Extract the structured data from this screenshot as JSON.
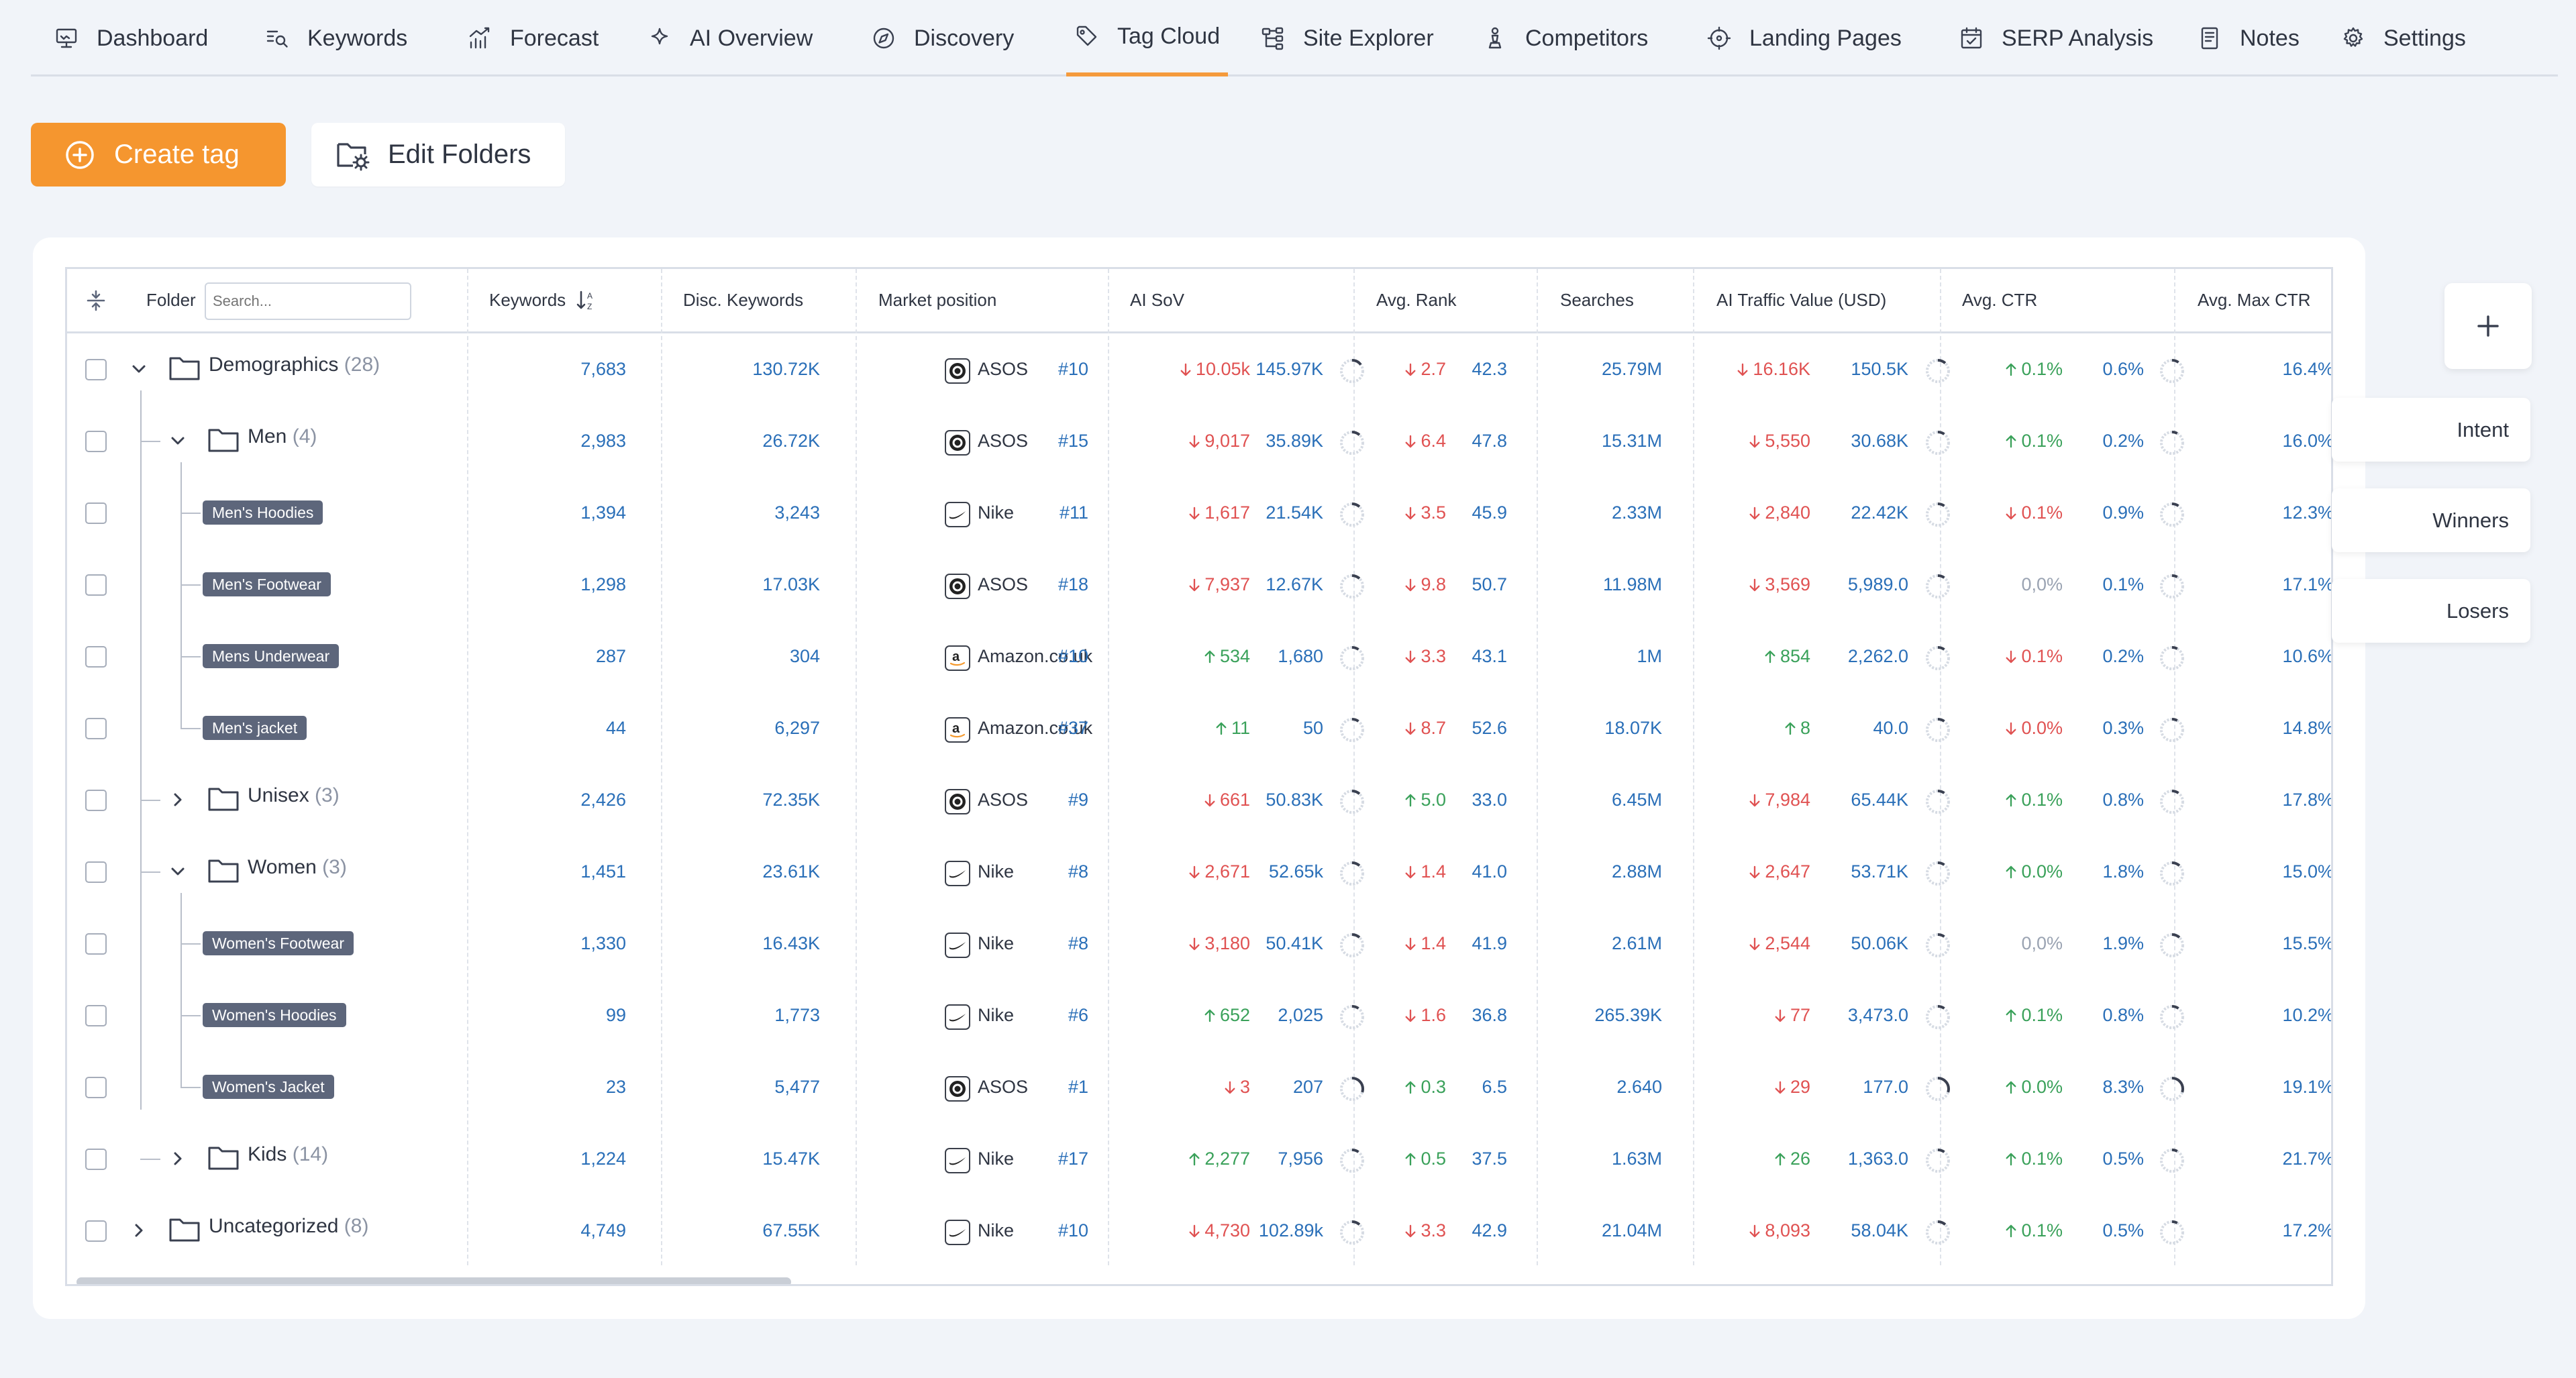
{
  "nav": {
    "tabs": [
      {
        "label": "Dashboard",
        "icon": "monitor-icon",
        "active": false
      },
      {
        "label": "Keywords",
        "icon": "keyword-search-icon",
        "active": false
      },
      {
        "label": "Forecast",
        "icon": "forecast-chart-icon",
        "active": false
      },
      {
        "label": "AI Overview",
        "icon": "sparkle-icon",
        "active": false
      },
      {
        "label": "Discovery",
        "icon": "compass-icon",
        "active": false
      },
      {
        "label": "Tag Cloud",
        "icon": "tag-icon",
        "active": true
      },
      {
        "label": "Site Explorer",
        "icon": "sitemap-icon",
        "active": false
      },
      {
        "label": "Competitors",
        "icon": "chess-pawn-icon",
        "active": false
      },
      {
        "label": "Landing Pages",
        "icon": "target-icon",
        "active": false
      },
      {
        "label": "SERP Analysis",
        "icon": "calendar-check-icon",
        "active": false
      },
      {
        "label": "Notes",
        "icon": "notes-icon",
        "active": false
      },
      {
        "label": "Settings",
        "icon": "gear-icon",
        "active": false
      }
    ]
  },
  "toolbar": {
    "create_label": "Create tag",
    "edit_label": "Edit Folders"
  },
  "table": {
    "headers": {
      "folder": "Folder",
      "search_placeholder": "Search...",
      "keywords": "Keywords",
      "disc": "Disc. Keywords",
      "market": "Market position",
      "aisov": "AI SoV",
      "rank": "Avg. Rank",
      "searches": "Searches",
      "traffic": "AI Traffic Value (USD)",
      "ctr": "Avg. CTR",
      "maxctr": "Avg. Max CTR"
    },
    "rows": [
      {
        "kind": "folder",
        "level": 0,
        "expanded": true,
        "name": "Demographics",
        "count": "(28)",
        "keywords": "7,683",
        "disc": "130.72K",
        "brand": "ASOS",
        "brand_icon": "asos",
        "pos": "#10",
        "sov_d": "10.05k",
        "sov_dir": "down",
        "sov": "145.97K",
        "sov_ring": 0.15,
        "rank_d": "2.7",
        "rank_dir": "down",
        "rank": "42.3",
        "searches": "25.79M",
        "tv_d": "16.16K",
        "tv_dir": "down",
        "tv": "150.5K",
        "tv_ring": 0.12,
        "ctr_d": "0.1%",
        "ctr_dir": "up",
        "ctr": "0.6%",
        "ctr_ring": 0.1,
        "maxctr": "16.4%"
      },
      {
        "kind": "folder",
        "level": 1,
        "expanded": true,
        "name": "Men",
        "count": "(4)",
        "keywords": "2,983",
        "disc": "26.72K",
        "brand": "ASOS",
        "brand_icon": "asos",
        "pos": "#15",
        "sov_d": "9,017",
        "sov_dir": "down",
        "sov": "35.89K",
        "sov_ring": 0.12,
        "rank_d": "6.4",
        "rank_dir": "down",
        "rank": "47.8",
        "searches": "15.31M",
        "tv_d": "5,550",
        "tv_dir": "down",
        "tv": "30.68K",
        "tv_ring": 0.1,
        "ctr_d": "0.1%",
        "ctr_dir": "up",
        "ctr": "0.2%",
        "ctr_ring": 0.08,
        "maxctr": "16.0%"
      },
      {
        "kind": "tag",
        "level": 2,
        "name": "Men's Hoodies",
        "keywords": "1,394",
        "disc": "3,243",
        "brand": "Nike",
        "brand_icon": "nike",
        "pos": "#11",
        "sov_d": "1,617",
        "sov_dir": "down",
        "sov": "21.54K",
        "sov_ring": 0.12,
        "rank_d": "3.5",
        "rank_dir": "down",
        "rank": "45.9",
        "searches": "2.33M",
        "tv_d": "2,840",
        "tv_dir": "down",
        "tv": "22.42K",
        "tv_ring": 0.1,
        "ctr_d": "0.1%",
        "ctr_dir": "down",
        "ctr": "0.9%",
        "ctr_ring": 0.1,
        "maxctr": "12.3%"
      },
      {
        "kind": "tag",
        "level": 2,
        "name": "Men's Footwear",
        "keywords": "1,298",
        "disc": "17.03K",
        "brand": "ASOS",
        "brand_icon": "asos",
        "pos": "#18",
        "sov_d": "7,937",
        "sov_dir": "down",
        "sov": "12.67K",
        "sov_ring": 0.12,
        "rank_d": "9.8",
        "rank_dir": "down",
        "rank": "50.7",
        "searches": "11.98M",
        "tv_d": "3,569",
        "tv_dir": "down",
        "tv": "5,989.0",
        "tv_ring": 0.1,
        "ctr_d": "0,0%",
        "ctr_dir": "neutral",
        "ctr": "0.1%",
        "ctr_ring": 0.08,
        "maxctr": "17.1%"
      },
      {
        "kind": "tag",
        "level": 2,
        "name": "Mens Underwear",
        "keywords": "287",
        "disc": "304",
        "brand": "Amazon.co.uk",
        "brand_icon": "amazon",
        "pos": "#10",
        "sov_d": "534",
        "sov_dir": "up",
        "sov": "1,680",
        "sov_ring": 0.1,
        "rank_d": "3.3",
        "rank_dir": "down",
        "rank": "43.1",
        "searches": "1M",
        "tv_d": "854",
        "tv_dir": "up",
        "tv": "2,262.0",
        "tv_ring": 0.1,
        "ctr_d": "0.1%",
        "ctr_dir": "down",
        "ctr": "0.2%",
        "ctr_ring": 0.08,
        "maxctr": "10.6%"
      },
      {
        "kind": "tag",
        "level": 2,
        "last": true,
        "name": "Men's jacket",
        "keywords": "44",
        "disc": "6,297",
        "brand": "Amazon.co.uk",
        "brand_icon": "amazon",
        "pos": "#37",
        "sov_d": "11",
        "sov_dir": "up",
        "sov": "50",
        "sov_ring": 0.1,
        "rank_d": "8.7",
        "rank_dir": "down",
        "rank": "52.6",
        "searches": "18.07K",
        "tv_d": "8",
        "tv_dir": "up",
        "tv": "40.0",
        "tv_ring": 0.1,
        "ctr_d": "0.0%",
        "ctr_dir": "down",
        "ctr": "0.3%",
        "ctr_ring": 0.08,
        "maxctr": "14.8%"
      },
      {
        "kind": "folder",
        "level": 1,
        "expanded": false,
        "name": "Unisex",
        "count": "(3)",
        "keywords": "2,426",
        "disc": "72.35K",
        "brand": "ASOS",
        "brand_icon": "asos",
        "pos": "#9",
        "sov_d": "661",
        "sov_dir": "down",
        "sov": "50.83K",
        "sov_ring": 0.12,
        "rank_d": "5.0",
        "rank_dir": "up",
        "rank": "33.0",
        "searches": "6.45M",
        "tv_d": "7,984",
        "tv_dir": "down",
        "tv": "65.44K",
        "tv_ring": 0.1,
        "ctr_d": "0.1%",
        "ctr_dir": "up",
        "ctr": "0.8%",
        "ctr_ring": 0.1,
        "maxctr": "17.8%"
      },
      {
        "kind": "folder",
        "level": 1,
        "expanded": true,
        "name": "Women",
        "count": "(3)",
        "keywords": "1,451",
        "disc": "23.61K",
        "brand": "Nike",
        "brand_icon": "nike",
        "pos": "#8",
        "sov_d": "2,671",
        "sov_dir": "down",
        "sov": "52.65k",
        "sov_ring": 0.12,
        "rank_d": "1.4",
        "rank_dir": "down",
        "rank": "41.0",
        "searches": "2.88M",
        "tv_d": "2,647",
        "tv_dir": "down",
        "tv": "53.71K",
        "tv_ring": 0.1,
        "ctr_d": "0.0%",
        "ctr_dir": "up",
        "ctr": "1.8%",
        "ctr_ring": 0.12,
        "maxctr": "15.0%"
      },
      {
        "kind": "tag",
        "level": 2,
        "name": "Women's Footwear",
        "keywords": "1,330",
        "disc": "16.43K",
        "brand": "Nike",
        "brand_icon": "nike",
        "pos": "#8",
        "sov_d": "3,180",
        "sov_dir": "down",
        "sov": "50.41K",
        "sov_ring": 0.12,
        "rank_d": "1.4",
        "rank_dir": "down",
        "rank": "41.9",
        "searches": "2.61M",
        "tv_d": "2,544",
        "tv_dir": "down",
        "tv": "50.06K",
        "tv_ring": 0.1,
        "ctr_d": "0,0%",
        "ctr_dir": "neutral",
        "ctr": "1.9%",
        "ctr_ring": 0.12,
        "maxctr": "15.5%"
      },
      {
        "kind": "tag",
        "level": 2,
        "name": "Women's Hoodies",
        "keywords": "99",
        "disc": "1,773",
        "brand": "Nike",
        "brand_icon": "nike",
        "pos": "#6",
        "sov_d": "652",
        "sov_dir": "up",
        "sov": "2,025",
        "sov_ring": 0.1,
        "rank_d": "1.6",
        "rank_dir": "down",
        "rank": "36.8",
        "searches": "265.39K",
        "tv_d": "77",
        "tv_dir": "down",
        "tv": "3,473.0",
        "tv_ring": 0.1,
        "ctr_d": "0.1%",
        "ctr_dir": "up",
        "ctr": "0.8%",
        "ctr_ring": 0.1,
        "maxctr": "10.2%"
      },
      {
        "kind": "tag",
        "level": 2,
        "last": true,
        "name": "Women's Jacket",
        "keywords": "23",
        "disc": "5,477",
        "brand": "ASOS",
        "brand_icon": "asos",
        "pos": "#1",
        "sov_d": "3",
        "sov_dir": "down",
        "sov": "207",
        "sov_ring": 0.3,
        "rank_d": "0.3",
        "rank_dir": "up",
        "rank": "6.5",
        "searches": "2.640",
        "tv_d": "29",
        "tv_dir": "down",
        "tv": "177.0",
        "tv_ring": 0.3,
        "ctr_d": "0.0%",
        "ctr_dir": "up",
        "ctr": "8.3%",
        "ctr_ring": 0.3,
        "maxctr": "19.1%"
      },
      {
        "kind": "folder",
        "level": 1,
        "expanded": false,
        "last": true,
        "name": "Kids",
        "count": "(14)",
        "keywords": "1,224",
        "disc": "15.47K",
        "brand": "Nike",
        "brand_icon": "nike",
        "pos": "#17",
        "sov_d": "2,277",
        "sov_dir": "up",
        "sov": "7,956",
        "sov_ring": 0.1,
        "rank_d": "0.5",
        "rank_dir": "up",
        "rank": "37.5",
        "searches": "1.63M",
        "tv_d": "26",
        "tv_dir": "up",
        "tv": "1,363.0",
        "tv_ring": 0.1,
        "ctr_d": "0.1%",
        "ctr_dir": "up",
        "ctr": "0.5%",
        "ctr_ring": 0.08,
        "maxctr": "21.7%"
      },
      {
        "kind": "folder",
        "level": 0,
        "expanded": false,
        "name": "Uncategorized",
        "count": "(8)",
        "keywords": "4,749",
        "disc": "67.55K",
        "brand": "Nike",
        "brand_icon": "nike",
        "pos": "#10",
        "sov_d": "4,730",
        "sov_dir": "down",
        "sov": "102.89k",
        "sov_ring": 0.12,
        "rank_d": "3.3",
        "rank_dir": "down",
        "rank": "42.9",
        "searches": "21.04M",
        "tv_d": "8,093",
        "tv_dir": "down",
        "tv": "58.04K",
        "tv_ring": 0.12,
        "ctr_d": "0.1%",
        "ctr_dir": "up",
        "ctr": "0.5%",
        "ctr_ring": 0.08,
        "maxctr": "17.2%"
      }
    ]
  },
  "side": {
    "intent": "Intent",
    "winners": "Winners",
    "losers": "Losers"
  },
  "colors": {
    "accent": "#f5962f",
    "link": "#2a6fb8",
    "up": "#3aa15a",
    "down": "#e05252",
    "tag_bg": "#5d667b"
  }
}
